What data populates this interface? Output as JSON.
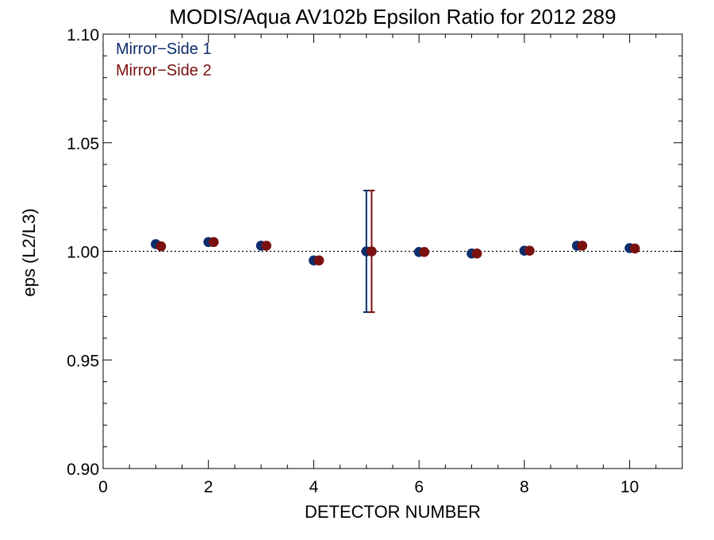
{
  "chart_data": {
    "type": "scatter",
    "title": "MODIS/Aqua AV102b Epsilon Ratio for 2012 289",
    "xlabel": "DETECTOR NUMBER",
    "ylabel": "eps (L2/L3)",
    "xlim": [
      0,
      11
    ],
    "ylim": [
      0.9,
      1.1
    ],
    "x_ticks": [
      0,
      2,
      4,
      6,
      8,
      10
    ],
    "y_ticks": [
      0.9,
      0.95,
      1.0,
      1.05,
      1.1
    ],
    "x_tick_labels": [
      "0",
      "2",
      "4",
      "6",
      "8",
      "10"
    ],
    "y_tick_labels": [
      "0.90",
      "0.95",
      "1.00",
      "1.05",
      "1.10"
    ],
    "reference_line": {
      "y": 1.0,
      "style": "dotted"
    },
    "legend_placement": "top-left",
    "series": [
      {
        "name": "Mirror−Side 1",
        "color": "#0d2d6b",
        "x": [
          1,
          2,
          3,
          4,
          5,
          6,
          7,
          8,
          9,
          10
        ],
        "values": [
          1.0033,
          1.0043,
          1.0026,
          0.9958,
          1.0,
          0.9997,
          0.999,
          1.0003,
          1.0026,
          1.0015
        ],
        "error_bar": {
          "x": 5,
          "low": 0.972,
          "high": 1.028
        }
      },
      {
        "name": "Mirror−Side 2",
        "color": "#7a1010",
        "x": [
          1.1,
          2.1,
          3.1,
          4.1,
          5.1,
          6.1,
          7.1,
          8.1,
          9.1,
          10.1
        ],
        "values": [
          1.0023,
          1.0043,
          1.0026,
          0.9958,
          1.0,
          0.9997,
          0.999,
          1.0003,
          1.0026,
          1.0013
        ],
        "error_bar": {
          "x": 5.1,
          "low": 0.972,
          "high": 1.028
        }
      }
    ]
  }
}
